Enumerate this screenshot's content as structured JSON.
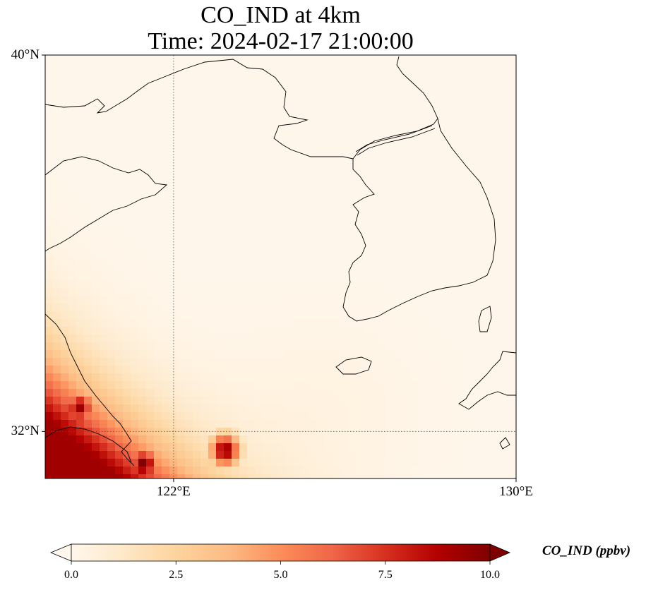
{
  "title": {
    "line1": "CO_IND at 4km",
    "line2": "Time: 2024-02-17 21:00:00"
  },
  "map": {
    "lon_range": [
      119,
      130
    ],
    "lat_range": [
      31,
      40
    ],
    "lon_ticks": [
      {
        "value": 122,
        "label": "122°E"
      },
      {
        "value": 130,
        "label": "130°E"
      }
    ],
    "lat_ticks": [
      {
        "value": 40,
        "label": "40°N"
      },
      {
        "value": 32,
        "label": "32°N"
      }
    ],
    "gridlines": "dotted",
    "coastlines": true
  },
  "chart_data": {
    "type": "heatmap",
    "variable": "CO_IND",
    "units": "ppbv",
    "colormap": "OrRd",
    "vmin": 0,
    "vmax": 10,
    "pattern": "High concentrations (6–10 ppbv) over the southwest corner (eastern China coast near 31–33°N, 119–122°E), decreasing to the northeast; most of the domain below 1 ppbv",
    "hotspots": [
      {
        "lon": 123.2,
        "lat": 31.6,
        "value": 9.5
      },
      {
        "lon": 121.3,
        "lat": 31.3,
        "value": 10
      },
      {
        "lon": 119.8,
        "lat": 32.5,
        "value": 9.3
      }
    ]
  },
  "colorbar": {
    "label": "CO_IND (ppbv)",
    "ticks": [
      "0.0",
      "2.5",
      "5.0",
      "7.5",
      "10.0"
    ],
    "extend": "both",
    "orientation": "horizontal"
  },
  "colors": {
    "cmap_stops": [
      "#fff7ec",
      "#fee8c8",
      "#fdd49e",
      "#fdbb84",
      "#fc8d59",
      "#ef6548",
      "#d7301f",
      "#b30000",
      "#7f0000"
    ]
  }
}
